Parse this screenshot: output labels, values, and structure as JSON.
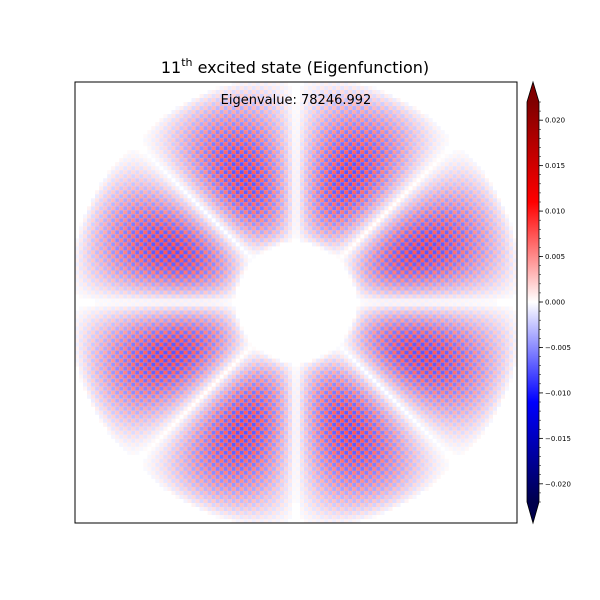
{
  "chart_data": {
    "type": "heatmap",
    "title": {
      "prefix": "11",
      "superscript": "th",
      "suffix": " excited state (Eigenfunction)"
    },
    "annotation": "Eigenvalue: 78246.992",
    "colormap": "seismic",
    "colormap_stops": [
      "#00004c",
      "#0000ff",
      "#ffffff",
      "#ff0000",
      "#800000"
    ],
    "colorbar": {
      "vmin": -0.022,
      "vmax": 0.022,
      "extend": "both",
      "major_ticks": [
        -0.02,
        -0.015,
        -0.01,
        -0.005,
        0.0,
        0.005,
        0.01,
        0.015,
        0.02
      ],
      "tick_labels": [
        "−0.020",
        "−0.015",
        "−0.010",
        "−0.005",
        "0.000",
        "0.005",
        "0.010",
        "0.015",
        "0.020"
      ],
      "minor_tick_step": 0.001
    },
    "field": {
      "description_values": "checkerboard eigenfunction with 8 lobes separated by angular nodal lines",
      "peak_amplitude": 0.008,
      "grid_n": 110,
      "angular_nodes_deg": [
        0,
        45,
        90,
        135
      ],
      "inner_radius_fraction": 0.27
    },
    "axes": {
      "xticks": [],
      "yticks": []
    }
  }
}
